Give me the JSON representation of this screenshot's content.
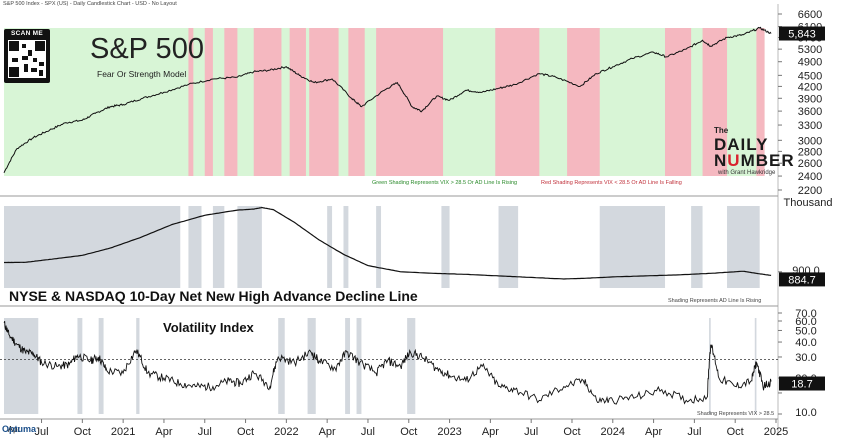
{
  "header": {
    "text": "S&P 500 Index - SPX (US) - Daily Candlestick Chart - USD - No Layout"
  },
  "qr": {
    "label": "SCAN ME"
  },
  "brand": {
    "the": "The",
    "daily": "DAILY",
    "number_pre": "N",
    "number_red": "U",
    "number_post": "MBER",
    "by": "with Grant Hawkridge"
  },
  "optuma": {
    "label": "Optuma"
  },
  "colors": {
    "green_shade": "#d8f5d6",
    "red_shade": "#f5b8c0",
    "gray_shade": "#d3d8de",
    "line": "#111111"
  },
  "chart_data": [
    {
      "type": "line",
      "title": "S&P 500",
      "subtitle": "Fear Or Strength Model",
      "ylim": [
        2200,
        6600
      ],
      "y_ticks": [
        2200,
        2400,
        2600,
        2800,
        3000,
        3300,
        3600,
        3900,
        4200,
        4500,
        4900,
        5300,
        5700,
        6100,
        6600
      ],
      "y_ticks_labels": [
        "2200",
        "2400",
        "2600",
        "2800",
        "3000",
        "3300",
        "3600",
        "3900",
        "4200",
        "4500",
        "4900",
        "5300",
        "5700",
        "6100",
        "6600"
      ],
      "last_value_label": "5,843",
      "last_value": 5843,
      "annotations": [
        "Green Shading Represents VIX > 28.5 Or AD Line Is Rising",
        "Red Shading Represents VIX < 28.5 Or AD Line Is Falling"
      ],
      "x": [
        2020.27,
        2020.35,
        2020.45,
        2020.55,
        2020.65,
        2020.75,
        2020.83,
        2020.92,
        2021.0,
        2021.12,
        2021.25,
        2021.4,
        2021.55,
        2021.7,
        2021.8,
        2021.9,
        2022.0,
        2022.08,
        2022.17,
        2022.28,
        2022.4,
        2022.46,
        2022.6,
        2022.68,
        2022.77,
        2022.83,
        2022.92,
        2023.0,
        2023.1,
        2023.2,
        2023.3,
        2023.4,
        2023.55,
        2023.65,
        2023.8,
        2023.9,
        2024.0,
        2024.12,
        2024.25,
        2024.33,
        2024.45,
        2024.55,
        2024.6,
        2024.7,
        2024.8,
        2024.9,
        2024.97
      ],
      "values": [
        2450,
        2850,
        3050,
        3200,
        3350,
        3400,
        3550,
        3700,
        3750,
        3900,
        4050,
        4250,
        4400,
        4450,
        4600,
        4650,
        4750,
        4500,
        4300,
        4400,
        3900,
        3700,
        4100,
        4300,
        3700,
        3600,
        3950,
        3850,
        4100,
        4050,
        4150,
        4250,
        4550,
        4450,
        4200,
        4550,
        4750,
        5000,
        5200,
        5050,
        5300,
        5600,
        5400,
        5700,
        5800,
        6050,
        5843
      ],
      "green_shading": [
        [
          2020.27,
          2021.4
        ],
        [
          2021.55,
          2021.62
        ],
        [
          2021.97,
          2022.02
        ],
        [
          2022.96,
          2023.28
        ],
        [
          2023.55,
          2023.72
        ],
        [
          2023.92,
          2024.32
        ],
        [
          2024.48,
          2024.55
        ],
        [
          2024.7,
          2024.88
        ]
      ],
      "red_shading": [
        [
          2021.4,
          2021.43
        ],
        [
          2021.5,
          2021.55
        ],
        [
          2021.62,
          2021.7
        ],
        [
          2021.8,
          2021.97
        ],
        [
          2022.02,
          2022.12
        ],
        [
          2022.14,
          2022.32
        ],
        [
          2022.38,
          2022.48
        ],
        [
          2022.55,
          2022.96
        ],
        [
          2023.28,
          2023.55
        ],
        [
          2023.72,
          2023.92
        ],
        [
          2024.32,
          2024.48
        ],
        [
          2024.55,
          2024.7
        ],
        [
          2024.88,
          2024.93
        ]
      ]
    },
    {
      "type": "line",
      "title": "NYSE & NASDAQ 10-Day Net New High Advance Decline Line",
      "unit_label": "Thousand",
      "ylim": [
        850,
        1600
      ],
      "y_ticks": [
        900
      ],
      "y_ticks_labels": [
        "900.0"
      ],
      "last_value_label": "884.7",
      "last_value": 884.7,
      "annotation": "Shading Represents AD Line Is Rising",
      "x": [
        2020.27,
        2020.4,
        2020.55,
        2020.75,
        2020.92,
        2021.1,
        2021.3,
        2021.5,
        2021.7,
        2021.8,
        2021.85,
        2021.92,
        2022.05,
        2022.2,
        2022.35,
        2022.5,
        2022.7,
        2022.9,
        2023.1,
        2023.3,
        2023.5,
        2023.7,
        2023.85,
        2024.0,
        2024.2,
        2024.4,
        2024.6,
        2024.8,
        2024.9,
        2024.97
      ],
      "values": [
        1010,
        1012,
        1040,
        1080,
        1150,
        1250,
        1380,
        1470,
        1520,
        1530,
        1545,
        1525,
        1400,
        1230,
        1090,
        980,
        920,
        905,
        895,
        880,
        865,
        850,
        858,
        870,
        880,
        890,
        905,
        925,
        900,
        884.7
      ],
      "gray_shading": [
        [
          2020.27,
          2021.35
        ],
        [
          2021.4,
          2021.48
        ],
        [
          2021.55,
          2021.62
        ],
        [
          2021.7,
          2021.85
        ],
        [
          2022.25,
          2022.28
        ],
        [
          2022.35,
          2022.38
        ],
        [
          2022.55,
          2022.58
        ],
        [
          2022.95,
          2023.0
        ],
        [
          2023.3,
          2023.42
        ],
        [
          2023.92,
          2024.32
        ],
        [
          2024.48,
          2024.55
        ],
        [
          2024.7,
          2024.9
        ]
      ]
    },
    {
      "type": "line",
      "title": "Volatility Index",
      "ylim": [
        10,
        70
      ],
      "y_ticks": [
        10,
        15,
        20,
        30,
        40,
        50,
        60,
        70
      ],
      "y_ticks_labels": [
        "10.0",
        "15.0",
        "20.0",
        "30.0",
        "40.0",
        "50.0",
        "60.0",
        "70.0"
      ],
      "threshold": 28.5,
      "last_value_label": "18.7",
      "last_value": 18.7,
      "annotation": "Shading Represents VIX > 28.5",
      "x_ticks": [
        2020.5,
        2020.75,
        2021.0,
        2021.25,
        2021.5,
        2021.75,
        2022.0,
        2022.25,
        2022.5,
        2022.75,
        2023.0,
        2023.25,
        2023.5,
        2023.75,
        2024.0,
        2024.25,
        2024.5,
        2024.75,
        2025.0
      ],
      "x_ticks_labels": [
        "Jul",
        "Oct",
        "2021",
        "Apr",
        "Jul",
        "Oct",
        "2022",
        "Apr",
        "Jul",
        "Oct",
        "2023",
        "Apr",
        "Jul",
        "Oct",
        "2024",
        "Apr",
        "Jul",
        "Oct",
        "2025"
      ],
      "x_first_label": "Apr",
      "x": [
        2020.27,
        2020.3,
        2020.35,
        2020.4,
        2020.45,
        2020.5,
        2020.6,
        2020.67,
        2020.72,
        2020.8,
        2020.85,
        2020.9,
        2021.0,
        2021.08,
        2021.15,
        2021.25,
        2021.35,
        2021.45,
        2021.55,
        2021.65,
        2021.72,
        2021.8,
        2021.9,
        2021.95,
        2022.05,
        2022.15,
        2022.2,
        2022.3,
        2022.37,
        2022.45,
        2022.55,
        2022.62,
        2022.7,
        2022.76,
        2022.83,
        2022.92,
        2023.0,
        2023.1,
        2023.2,
        2023.3,
        2023.4,
        2023.55,
        2023.7,
        2023.82,
        2023.9,
        2024.0,
        2024.15,
        2024.3,
        2024.45,
        2024.58,
        2024.6,
        2024.65,
        2024.75,
        2024.85,
        2024.88,
        2024.92,
        2024.97
      ],
      "values": [
        58,
        46,
        38,
        33,
        32,
        27,
        25,
        26,
        31,
        28,
        30,
        23,
        22,
        34,
        22,
        20,
        18,
        17,
        17,
        19,
        18,
        22,
        17,
        30,
        27,
        33,
        28,
        24,
        33,
        27,
        22,
        28,
        25,
        33,
        30,
        24,
        21,
        19,
        25,
        17,
        16,
        13,
        17,
        19,
        13,
        13,
        14,
        16,
        13,
        14,
        38,
        20,
        17,
        19,
        27,
        17,
        18.7
      ],
      "gray_shading": [
        [
          2020.27,
          2020.48
        ],
        [
          2020.72,
          2020.75
        ],
        [
          2020.85,
          2020.88
        ],
        [
          2021.08,
          2021.1
        ],
        [
          2021.95,
          2021.99
        ],
        [
          2022.13,
          2022.18
        ],
        [
          2022.36,
          2022.39
        ],
        [
          2022.43,
          2022.46
        ],
        [
          2022.74,
          2022.79
        ],
        [
          2024.59,
          2024.6
        ],
        [
          2024.87,
          2024.88
        ]
      ]
    }
  ]
}
